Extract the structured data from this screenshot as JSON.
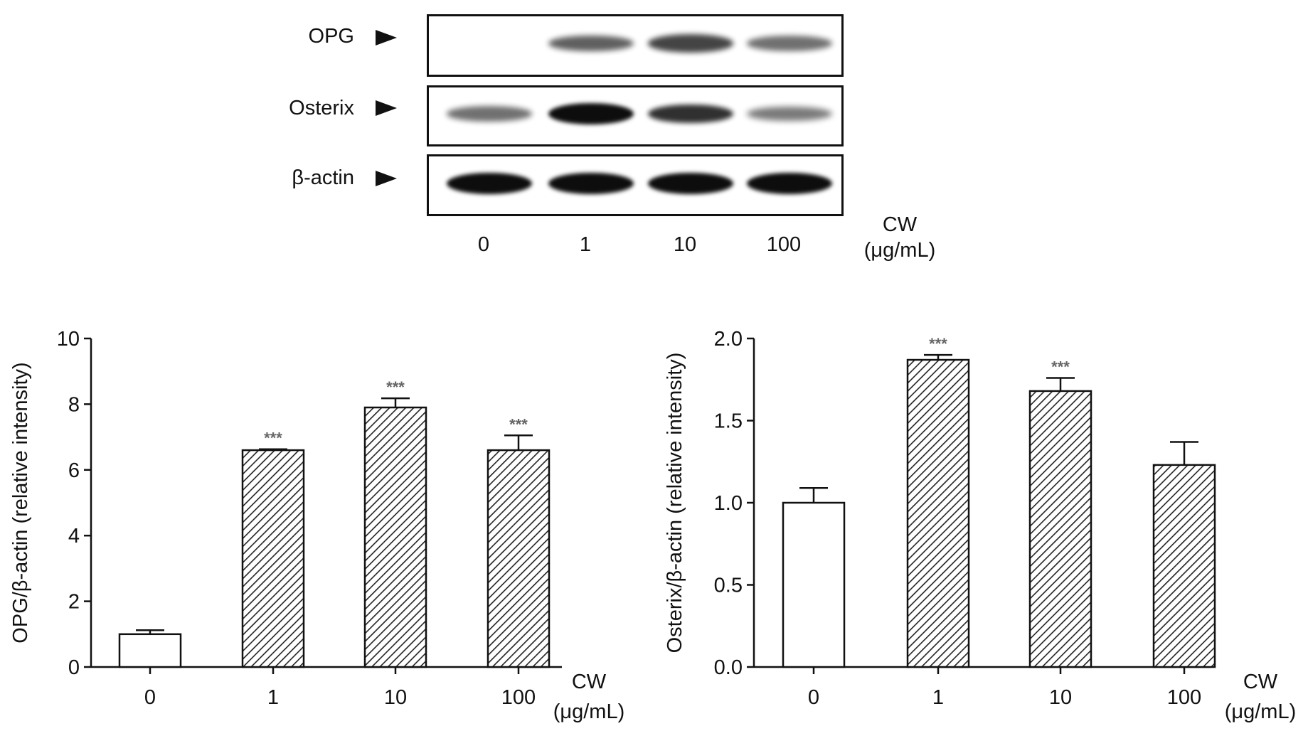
{
  "blot": {
    "rows": [
      {
        "label": "OPG",
        "bands": [
          0.0,
          0.55,
          0.7,
          0.45
        ]
      },
      {
        "label": "Osterix",
        "bands": [
          0.45,
          1.0,
          0.8,
          0.4
        ]
      },
      {
        "label": "β-actin",
        "bands": [
          1.0,
          1.0,
          1.0,
          1.0
        ]
      }
    ],
    "lanes": [
      "0",
      "1",
      "10",
      "100"
    ],
    "unit_line1": "CW",
    "unit_line2": "(μg/mL)"
  },
  "colors": {
    "ink": "#111111",
    "hatch": "#222222",
    "star": "#666666",
    "band": "#0d0d0d"
  },
  "chart_data": [
    {
      "type": "bar",
      "categories": [
        "0",
        "1",
        "10",
        "100"
      ],
      "values": [
        1.0,
        6.6,
        7.9,
        6.6
      ],
      "errors": [
        0.12,
        0.03,
        0.28,
        0.45
      ],
      "significance": [
        "",
        "***",
        "***",
        "***"
      ],
      "ylabel": "OPG/β-actin (relative intensity)",
      "xlabel_line1": "CW",
      "xlabel_line2": "(μg/mL)",
      "ylim": [
        0,
        10
      ],
      "yticks": [
        "0",
        "2",
        "4",
        "6",
        "8",
        "10"
      ],
      "fills": [
        "open",
        "hatched",
        "hatched",
        "hatched"
      ]
    },
    {
      "type": "bar",
      "categories": [
        "0",
        "1",
        "10",
        "100"
      ],
      "values": [
        1.0,
        1.87,
        1.68,
        1.23
      ],
      "errors": [
        0.09,
        0.03,
        0.08,
        0.14
      ],
      "significance": [
        "",
        "***",
        "***",
        ""
      ],
      "ylabel": "Osterix/β-actin (relative intensity)",
      "xlabel_line1": "CW",
      "xlabel_line2": "(μg/mL)",
      "ylim": [
        0,
        2.0
      ],
      "yticks": [
        "0.0",
        "0.5",
        "1.0",
        "1.5",
        "2.0"
      ],
      "fills": [
        "open",
        "hatched",
        "hatched",
        "hatched"
      ]
    }
  ]
}
